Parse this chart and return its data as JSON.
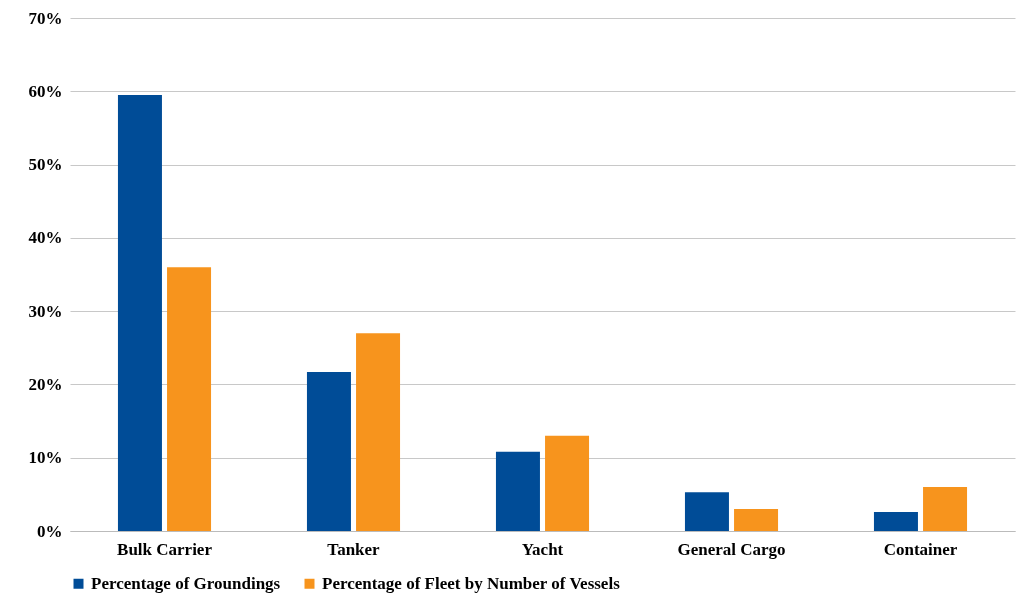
{
  "chart_data": {
    "type": "bar",
    "categories": [
      "Bulk Carrier",
      "Tanker",
      "Yacht",
      "General Cargo",
      "Container"
    ],
    "series": [
      {
        "name": "Percentage of Groundings",
        "color": "#004c97",
        "values": [
          59.5,
          21.7,
          10.8,
          5.3,
          2.6
        ]
      },
      {
        "name": "Percentage of Fleet by Number of Vessels",
        "color": "#f7941d",
        "values": [
          36,
          27,
          13,
          3,
          6
        ]
      }
    ],
    "ylim": [
      0,
      70
    ],
    "yticks": [
      {
        "value": 0,
        "label": "0%"
      },
      {
        "value": 10,
        "label": "10%"
      },
      {
        "value": 20,
        "label": "20%"
      },
      {
        "value": 30,
        "label": "30%"
      },
      {
        "value": 40,
        "label": "40%"
      },
      {
        "value": 50,
        "label": "50%"
      },
      {
        "value": 60,
        "label": "60%"
      },
      {
        "value": 70,
        "label": "70%"
      }
    ],
    "grid": "y",
    "legend": "bottom"
  }
}
